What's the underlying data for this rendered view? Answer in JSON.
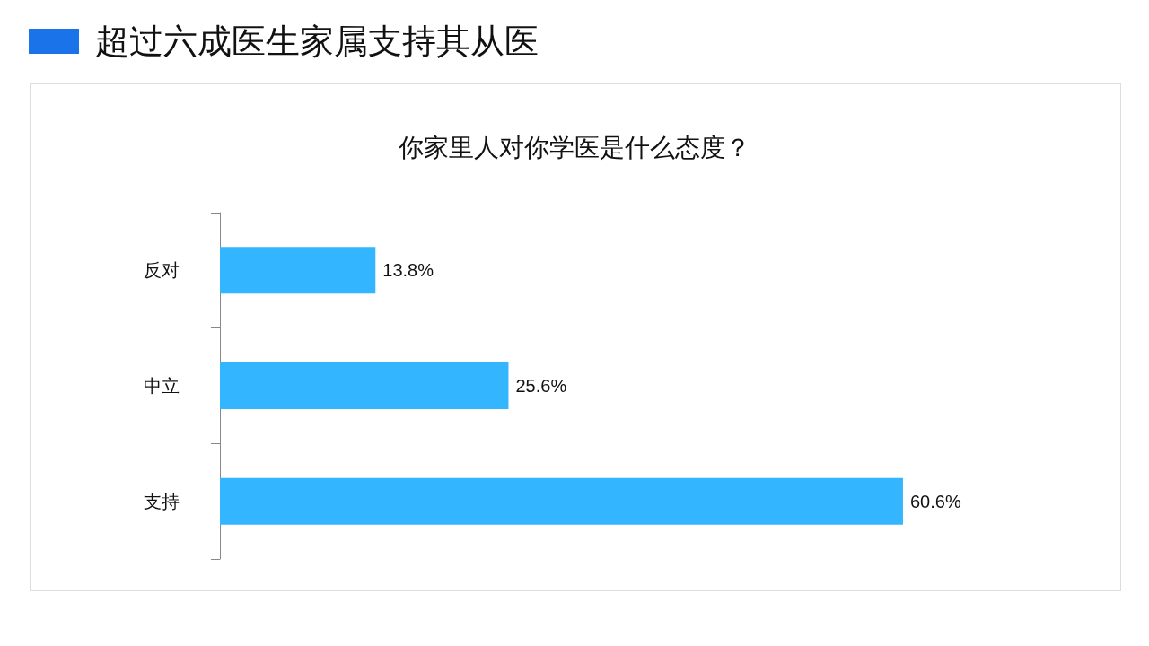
{
  "chart_data": {
    "type": "bar",
    "title": "超过六成医生家属支持其从医",
    "subtitle": "你家里人对你学医是什么态度？",
    "orientation": "horizontal",
    "categories": [
      "反对",
      "中立",
      "支持"
    ],
    "values": [
      13.8,
      25.6,
      60.6
    ],
    "value_labels": [
      "13.8%",
      "25.6%",
      "60.6%"
    ],
    "color": "#33b5ff"
  }
}
